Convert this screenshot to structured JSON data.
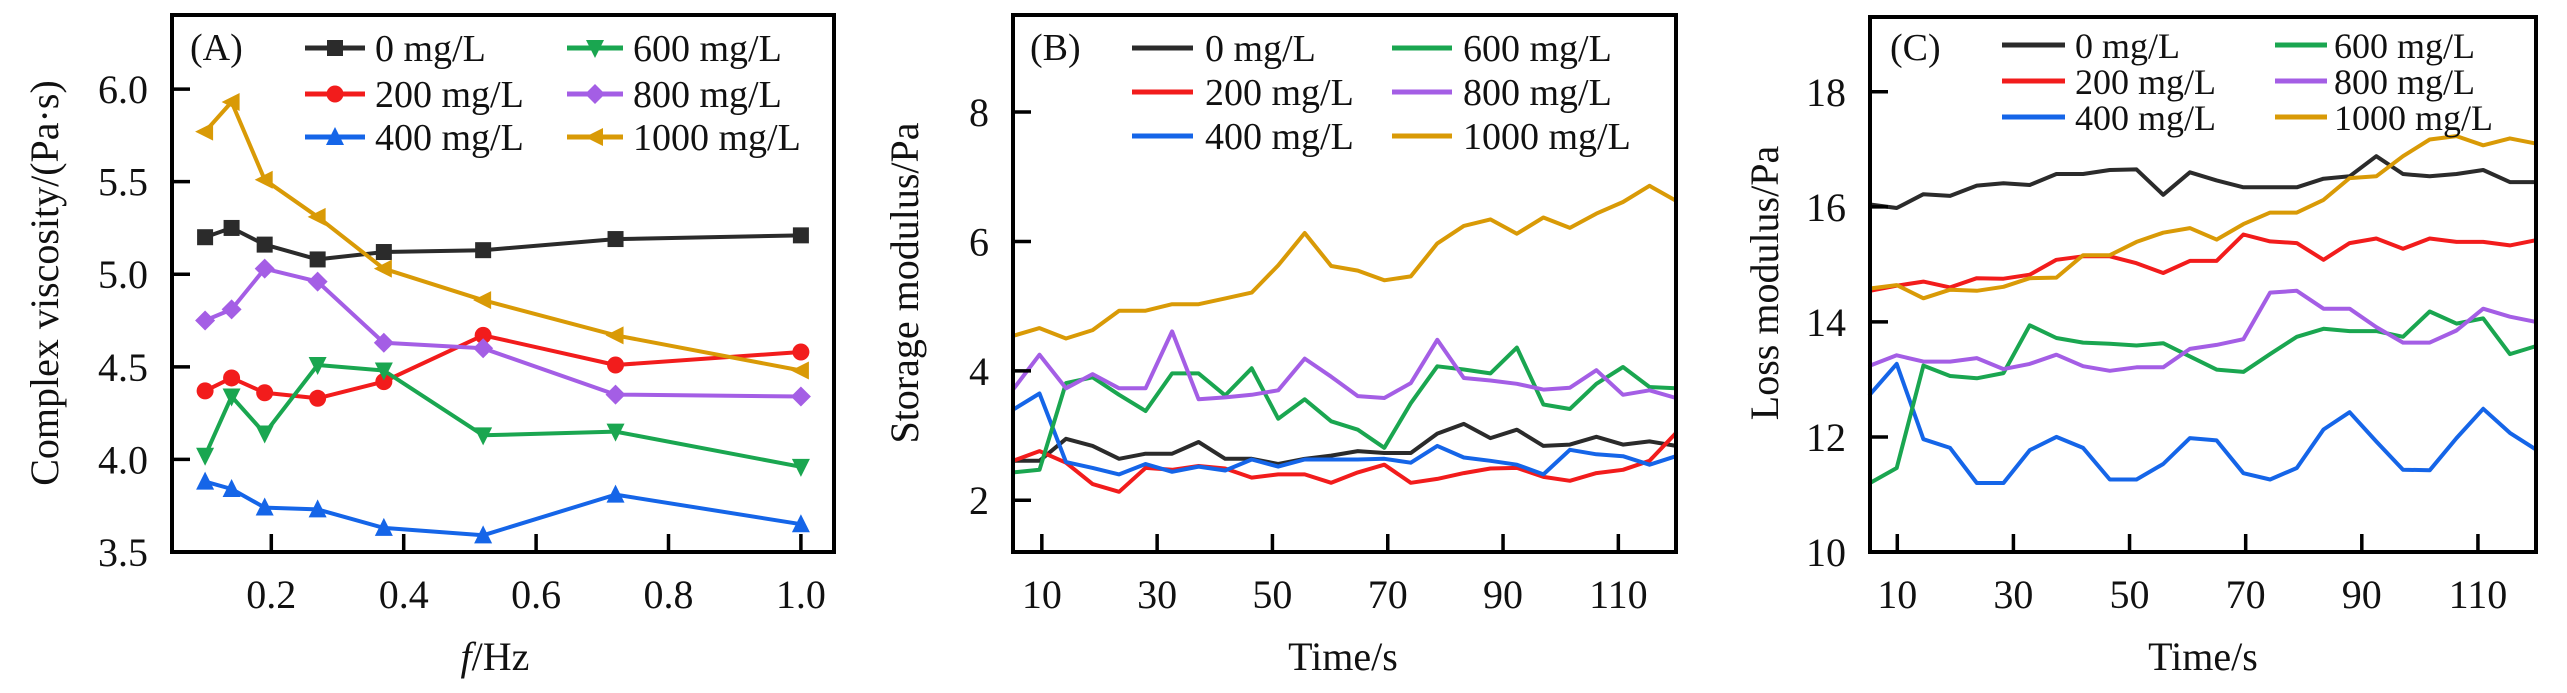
{
  "figure_title": "",
  "series_colors": {
    "0 mg/L": "#2b2b2b",
    "200 mg/L": "#f21c1c",
    "400 mg/L": "#1565e8",
    "600 mg/L": "#1aa650",
    "800 mg/L": "#a45ee5",
    "1000 mg/L": "#d99a06"
  },
  "chart_data": [
    {
      "id": "A",
      "panel_label": "(A)",
      "type": "line",
      "title": "",
      "xlabel_italic": "f",
      "xlabel_rest": "/Hz",
      "xlabel": "f/Hz",
      "ylabel": "Complex viscosity/(Pa·s)",
      "xlim": [
        0.05,
        1.05
      ],
      "ylim": [
        3.5,
        6.4
      ],
      "xticks": [
        0.2,
        0.4,
        0.6,
        0.8,
        1.0
      ],
      "xtick_labels": [
        "0.2",
        "0.4",
        "0.6",
        "0.8",
        "1.0"
      ],
      "yticks": [
        3.5,
        4.0,
        4.5,
        5.0,
        5.5,
        6.0
      ],
      "ytick_labels": [
        "3.5",
        "4.0",
        "4.5",
        "5.0",
        "5.5",
        "6.0"
      ],
      "grid": false,
      "legend_position": "top-right",
      "legend_columns": 2,
      "markers": true,
      "x": [
        0.1,
        0.14,
        0.19,
        0.27,
        0.37,
        0.52,
        0.72,
        1.0
      ],
      "series": [
        {
          "name": "0 mg/L",
          "marker": "square",
          "values": [
            5.2,
            5.25,
            5.16,
            5.08,
            5.12,
            5.13,
            5.19,
            5.21
          ]
        },
        {
          "name": "200 mg/L",
          "marker": "circle",
          "values": [
            4.37,
            4.44,
            4.36,
            4.33,
            4.42,
            4.67,
            4.51,
            4.58
          ]
        },
        {
          "name": "400 mg/L",
          "marker": "triangle-up",
          "values": [
            3.88,
            3.84,
            3.74,
            3.73,
            3.63,
            3.59,
            3.81,
            3.65
          ]
        },
        {
          "name": "600 mg/L",
          "marker": "triangle-down",
          "values": [
            4.02,
            4.34,
            4.14,
            4.51,
            4.48,
            4.13,
            4.15,
            3.96
          ]
        },
        {
          "name": "800 mg/L",
          "marker": "diamond",
          "values": [
            4.75,
            4.81,
            5.03,
            4.96,
            4.63,
            4.6,
            4.35,
            4.34
          ]
        },
        {
          "name": "1000 mg/L",
          "marker": "triangle-left",
          "values": [
            5.77,
            5.93,
            5.51,
            5.31,
            5.03,
            4.86,
            4.67,
            4.48
          ]
        }
      ]
    },
    {
      "id": "B",
      "panel_label": "(B)",
      "type": "line",
      "title": "",
      "xlabel": "Time/s",
      "ylabel": "Storage modulus/Pa",
      "xlim": [
        5,
        120
      ],
      "ylim": [
        1.2,
        9.5
      ],
      "xticks": [
        10,
        30,
        50,
        70,
        90,
        110
      ],
      "xtick_labels": [
        "10",
        "30",
        "50",
        "70",
        "90",
        "110"
      ],
      "yticks": [
        2,
        4,
        6,
        8
      ],
      "ytick_labels": [
        "2",
        "4",
        "6",
        "8"
      ],
      "grid": false,
      "legend_position": "top-right",
      "legend_columns": 2,
      "markers": false,
      "x": [
        5,
        9.6,
        14.2,
        18.8,
        23.4,
        28,
        32.6,
        37.2,
        41.8,
        46.4,
        51,
        55.6,
        60.2,
        64.8,
        69.4,
        74,
        78.6,
        83.2,
        87.8,
        92.4,
        97,
        101.6,
        106.2,
        110.8,
        115.4,
        120
      ],
      "series": [
        {
          "name": "0 mg/L",
          "values": [
            2.61,
            2.61,
            2.95,
            2.84,
            2.64,
            2.72,
            2.72,
            2.9,
            2.64,
            2.64,
            2.56,
            2.64,
            2.69,
            2.76,
            2.73,
            2.73,
            3.03,
            3.18,
            2.96,
            3.09,
            2.84,
            2.86,
            2.98,
            2.86,
            2.91,
            2.84
          ]
        },
        {
          "name": "200 mg/L",
          "values": [
            2.61,
            2.76,
            2.58,
            2.25,
            2.13,
            2.5,
            2.47,
            2.53,
            2.49,
            2.35,
            2.4,
            2.4,
            2.27,
            2.43,
            2.55,
            2.27,
            2.33,
            2.42,
            2.49,
            2.5,
            2.36,
            2.3,
            2.42,
            2.47,
            2.61,
            3.04
          ]
        },
        {
          "name": "400 mg/L",
          "values": [
            3.4,
            3.65,
            2.59,
            2.5,
            2.4,
            2.56,
            2.44,
            2.52,
            2.46,
            2.63,
            2.52,
            2.63,
            2.63,
            2.63,
            2.64,
            2.58,
            2.84,
            2.66,
            2.61,
            2.55,
            2.4,
            2.78,
            2.71,
            2.68,
            2.55,
            2.68
          ]
        },
        {
          "name": "600 mg/L",
          "values": [
            2.43,
            2.47,
            3.81,
            3.9,
            3.63,
            3.38,
            3.96,
            3.96,
            3.62,
            4.04,
            3.26,
            3.56,
            3.22,
            3.09,
            2.81,
            3.5,
            4.07,
            4.02,
            3.96,
            4.36,
            3.48,
            3.41,
            3.8,
            4.06,
            3.75,
            3.73
          ]
        },
        {
          "name": "800 mg/L",
          "values": [
            3.71,
            4.25,
            3.73,
            3.95,
            3.73,
            3.73,
            4.61,
            3.56,
            3.59,
            3.63,
            3.7,
            4.19,
            3.91,
            3.61,
            3.58,
            3.81,
            4.48,
            3.89,
            3.85,
            3.8,
            3.71,
            3.74,
            4.01,
            3.63,
            3.7,
            3.58
          ]
        },
        {
          "name": "1000 mg/L",
          "values": [
            4.54,
            4.66,
            4.5,
            4.63,
            4.93,
            4.93,
            5.03,
            5.03,
            5.12,
            5.21,
            5.63,
            6.13,
            5.62,
            5.55,
            5.4,
            5.46,
            5.97,
            6.24,
            6.34,
            6.12,
            6.37,
            6.21,
            6.43,
            6.61,
            6.86,
            6.63
          ]
        }
      ]
    },
    {
      "id": "C",
      "panel_label": "(C)",
      "type": "line",
      "title": "",
      "xlabel": "Time/s",
      "ylabel": "Loss modulus/Pa",
      "xlim": [
        5.3,
        120
      ],
      "ylim": [
        10,
        19.3
      ],
      "xticks": [
        10,
        30,
        50,
        70,
        90,
        110
      ],
      "xtick_labels": [
        "10",
        "30",
        "50",
        "70",
        "90",
        "110"
      ],
      "yticks": [
        10,
        12,
        14,
        16,
        18
      ],
      "ytick_labels": [
        "10",
        "12",
        "14",
        "16",
        "18"
      ],
      "grid": false,
      "legend_position": "top-right",
      "legend_columns": 2,
      "markers": false,
      "x": [
        5.3,
        9.9,
        14.5,
        19.1,
        23.7,
        28.3,
        32.8,
        37.4,
        42,
        46.6,
        51.2,
        55.8,
        60.4,
        65,
        69.6,
        74.2,
        78.8,
        83.4,
        87.9,
        92.5,
        97.1,
        101.7,
        106.3,
        110.9,
        115.5,
        120
      ],
      "series": [
        {
          "name": "0 mg/L",
          "values": [
            16.04,
            15.98,
            16.22,
            16.19,
            16.37,
            16.41,
            16.38,
            16.57,
            16.57,
            16.64,
            16.65,
            16.21,
            16.6,
            16.46,
            16.34,
            16.34,
            16.34,
            16.49,
            16.53,
            16.88,
            16.57,
            16.53,
            16.57,
            16.64,
            16.43,
            16.43
          ]
        },
        {
          "name": "200 mg/L",
          "values": [
            14.54,
            14.63,
            14.7,
            14.6,
            14.76,
            14.75,
            14.82,
            15.08,
            15.14,
            15.14,
            15.02,
            14.85,
            15.06,
            15.06,
            15.52,
            15.4,
            15.37,
            15.08,
            15.37,
            15.45,
            15.27,
            15.45,
            15.39,
            15.39,
            15.33,
            15.42
          ]
        },
        {
          "name": "400 mg/L",
          "values": [
            12.74,
            13.27,
            11.96,
            11.81,
            11.2,
            11.2,
            11.77,
            12.0,
            11.81,
            11.26,
            11.26,
            11.53,
            11.98,
            11.94,
            11.37,
            11.26,
            11.46,
            12.13,
            12.43,
            11.92,
            11.43,
            11.42,
            11.98,
            12.49,
            12.07,
            11.78
          ]
        },
        {
          "name": "600 mg/L",
          "values": [
            11.2,
            11.46,
            13.24,
            13.06,
            13.02,
            13.11,
            13.94,
            13.72,
            13.64,
            13.62,
            13.59,
            13.63,
            13.4,
            13.17,
            13.13,
            13.44,
            13.74,
            13.88,
            13.84,
            13.84,
            13.74,
            14.18,
            13.97,
            14.06,
            13.44,
            13.58
          ]
        },
        {
          "name": "800 mg/L",
          "values": [
            13.24,
            13.42,
            13.31,
            13.31,
            13.37,
            13.18,
            13.27,
            13.43,
            13.23,
            13.15,
            13.21,
            13.21,
            13.53,
            13.6,
            13.7,
            14.51,
            14.54,
            14.23,
            14.23,
            13.91,
            13.64,
            13.64,
            13.85,
            14.23,
            14.09,
            14.0
          ]
        },
        {
          "name": "1000 mg/L",
          "values": [
            14.58,
            14.64,
            14.41,
            14.56,
            14.54,
            14.61,
            14.76,
            14.77,
            15.16,
            15.16,
            15.39,
            15.55,
            15.63,
            15.43,
            15.7,
            15.9,
            15.9,
            16.12,
            16.5,
            16.53,
            16.88,
            17.17,
            17.23,
            17.07,
            17.19,
            17.1
          ]
        }
      ]
    }
  ]
}
